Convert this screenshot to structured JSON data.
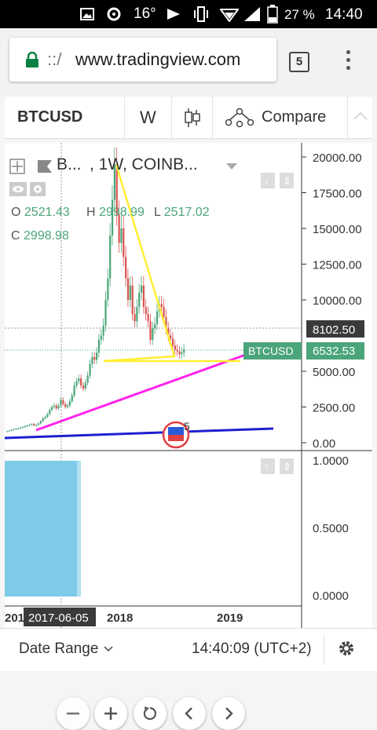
{
  "status_bar": {
    "temperature": "16°",
    "battery": "27 %",
    "time": "14:40"
  },
  "browser": {
    "url": "www.tradingview.com",
    "url_prefix": "::/",
    "tab_count": "5"
  },
  "toolbar": {
    "symbol": "BTCUSD",
    "interval": "W",
    "compare_label": "Compare"
  },
  "chart": {
    "title_symbol": "B...",
    "title_rest": ", 1W, COINB...",
    "ohlc": {
      "o_label": "O",
      "o": "2521.43",
      "h_label": "H",
      "h": "2998.99",
      "l_label": "L",
      "l": "2517.02",
      "c_label": "C",
      "c": "2998.98"
    },
    "price_ticks": [
      "20000.00",
      "17500.00",
      "15000.00",
      "12500.00",
      "10000.00",
      "5000.00",
      "2500.00",
      "0.00"
    ],
    "crosshair_price": "8102.50",
    "symbol_tag": "BTCUSD",
    "last_price": "6532.53",
    "event_badge": "5",
    "indicator_ticks": [
      "1.0000",
      "0.5000",
      "0.0000"
    ],
    "time_ticks": [
      "201",
      "2018",
      "2019"
    ],
    "crosshair_date": "2017-06-05",
    "colors": {
      "up": "#4aa57a",
      "down": "#d9534f",
      "triangle": "#ffee33",
      "support": "#ff22ee",
      "long_trend": "#1f1fd0",
      "histogram": "#7ecbe9"
    }
  },
  "chart_data": {
    "type": "line",
    "title": "",
    "x": [
      "2017-06-05",
      "2017-12-18",
      "2018-06-01"
    ],
    "series": [
      {
        "name": "BTCUSD",
        "values": [
          2999,
          19500,
          6532.53
        ]
      }
    ],
    "ylim": [
      0,
      21000
    ],
    "ylabel": "",
    "xlabel": ""
  },
  "bottom_bar": {
    "date_range": "Date Range",
    "clock": "14:40:09 (UTC+2)"
  }
}
